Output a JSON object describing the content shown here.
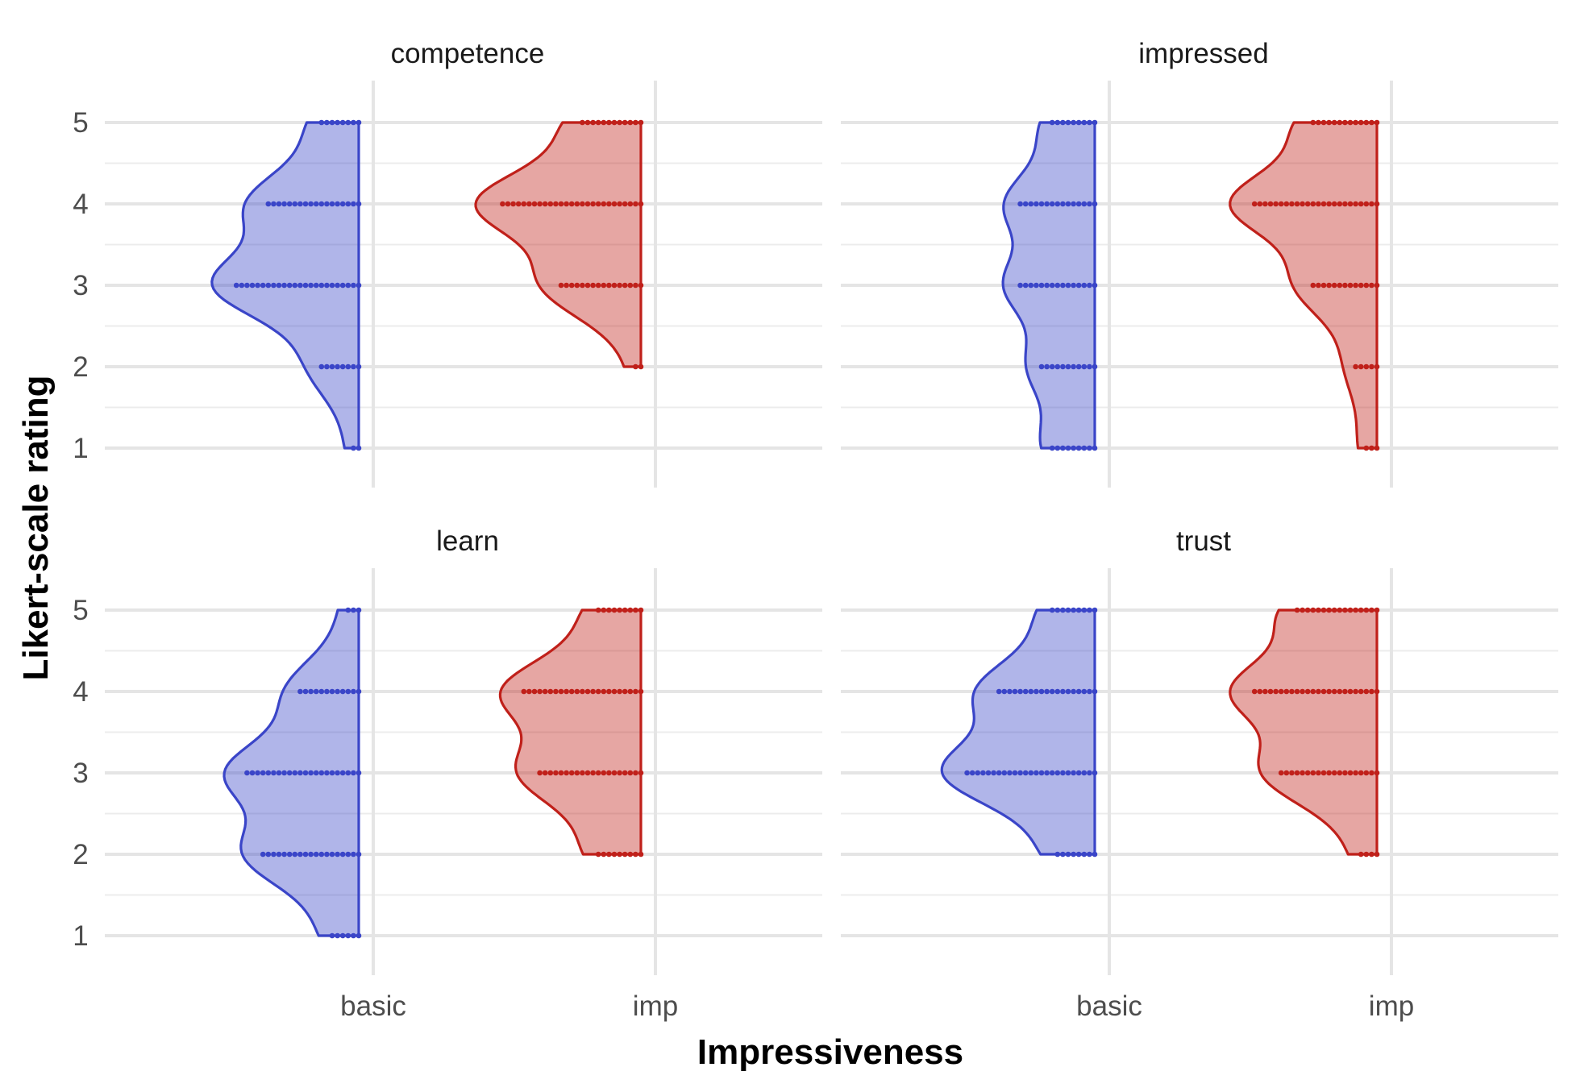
{
  "chart_data": {
    "type": "violin",
    "xlabel": "Impressiveness",
    "ylabel": "Likert-scale rating",
    "categories": [
      "basic",
      "imp"
    ],
    "y_ticks": [
      1,
      2,
      3,
      4,
      5
    ],
    "ylim": [
      0.4,
      5.4
    ],
    "grid": true,
    "legend": "none",
    "colors": {
      "basic": "#3a45c8",
      "imp": "#c0201a"
    },
    "panels": [
      {
        "label": "competence",
        "series": [
          {
            "category": "basic",
            "counts": {
              "1": 2,
              "2": 8,
              "3": 24,
              "4": 18,
              "5": 8
            }
          },
          {
            "category": "imp",
            "counts": {
              "1": 0,
              "2": 2,
              "3": 16,
              "4": 27,
              "5": 12
            }
          }
        ]
      },
      {
        "label": "impressed",
        "series": [
          {
            "category": "basic",
            "counts": {
              "1": 9,
              "2": 11,
              "3": 15,
              "4": 15,
              "5": 9
            }
          },
          {
            "category": "imp",
            "counts": {
              "1": 3,
              "2": 5,
              "3": 13,
              "4": 24,
              "5": 13
            }
          }
        ]
      },
      {
        "label": "learn",
        "series": [
          {
            "category": "basic",
            "counts": {
              "1": 6,
              "2": 19,
              "3": 22,
              "4": 12,
              "5": 3
            }
          },
          {
            "category": "imp",
            "counts": {
              "1": 0,
              "2": 9,
              "3": 20,
              "4": 23,
              "5": 9
            }
          }
        ]
      },
      {
        "label": "trust",
        "series": [
          {
            "category": "basic",
            "counts": {
              "1": 0,
              "2": 8,
              "3": 25,
              "4": 19,
              "5": 9
            }
          },
          {
            "category": "imp",
            "counts": {
              "1": 0,
              "2": 4,
              "3": 19,
              "4": 24,
              "5": 16
            }
          }
        ]
      }
    ]
  }
}
